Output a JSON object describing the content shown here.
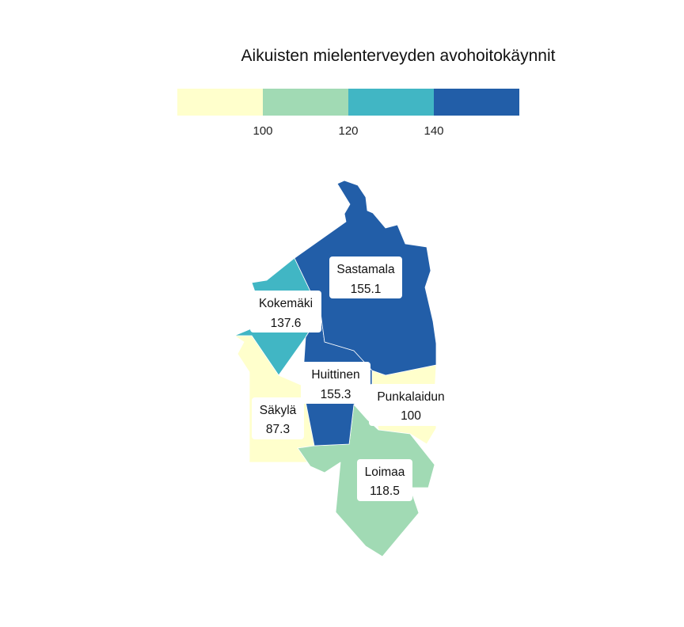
{
  "title": "Aikuisten mielenterveyden avohoitokäynnit",
  "legend": {
    "colors": [
      "#ffffcc",
      "#a1dab4",
      "#41b6c4",
      "#225ea8"
    ],
    "breaks": [
      "100",
      "120",
      "140"
    ]
  },
  "regions": [
    {
      "id": "sastamala",
      "name": "Sastamala",
      "value": "155.1",
      "color": "#225ea8"
    },
    {
      "id": "kokemaki",
      "name": "Kokemäki",
      "value": "137.6",
      "color": "#41b6c4"
    },
    {
      "id": "huittinen",
      "name": "Huittinen",
      "value": "155.3",
      "color": "#225ea8"
    },
    {
      "id": "punkalaidun",
      "name": "Punkalaidun",
      "value": "100",
      "color": "#ffffcc"
    },
    {
      "id": "sakyla",
      "name": "Säkylä",
      "value": "87.3",
      "color": "#ffffcc"
    },
    {
      "id": "loimaa",
      "name": "Loimaa",
      "value": "118.5",
      "color": "#a1dab4"
    }
  ]
}
